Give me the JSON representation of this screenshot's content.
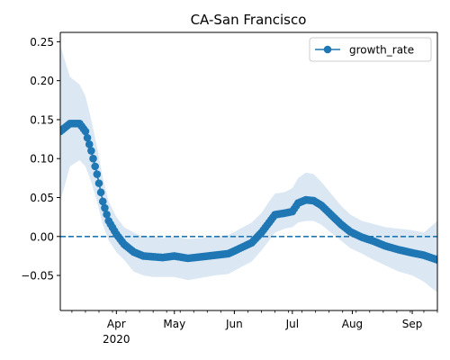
{
  "chart_data": {
    "type": "line",
    "title": "CA-San Francisco",
    "xlabel": "",
    "ylabel": "",
    "x_range": [
      "2020-03-03",
      "2020-09-14"
    ],
    "ylim": [
      -0.095,
      0.262
    ],
    "yticks": [
      "0.25",
      "0.20",
      "0.15",
      "0.10",
      "0.05",
      "0.00",
      "−0.05"
    ],
    "ytick_values": [
      0.25,
      0.2,
      0.15,
      0.1,
      0.05,
      0.0,
      -0.05
    ],
    "xticks": [
      {
        "date": "2020-04-01",
        "label": "Apr",
        "sublabel": "2020"
      },
      {
        "date": "2020-05-01",
        "label": "May",
        "sublabel": ""
      },
      {
        "date": "2020-06-01",
        "label": "Jun",
        "sublabel": ""
      },
      {
        "date": "2020-07-01",
        "label": "Jul",
        "sublabel": ""
      },
      {
        "date": "2020-08-01",
        "label": "Aug",
        "sublabel": ""
      },
      {
        "date": "2020-09-01",
        "label": "Sep",
        "sublabel": ""
      }
    ],
    "legend": {
      "position": "top-right",
      "entries": [
        "growth_rate"
      ]
    },
    "grid": false,
    "reference_line": {
      "y": 0.0,
      "style": "dashed"
    },
    "colors": {
      "series": "#1f77b4",
      "band": "#dbe7f3"
    },
    "series": [
      {
        "name": "growth_rate",
        "marker": "circle",
        "points": [
          {
            "x": "2020-03-03",
            "y": 0.135
          },
          {
            "x": "2020-03-08",
            "y": 0.145
          },
          {
            "x": "2020-03-13",
            "y": 0.145
          },
          {
            "x": "2020-03-16",
            "y": 0.135
          },
          {
            "x": "2020-03-19",
            "y": 0.11
          },
          {
            "x": "2020-03-22",
            "y": 0.08
          },
          {
            "x": "2020-03-25",
            "y": 0.045
          },
          {
            "x": "2020-03-28",
            "y": 0.02
          },
          {
            "x": "2020-04-01",
            "y": 0.003
          },
          {
            "x": "2020-04-05",
            "y": -0.01
          },
          {
            "x": "2020-04-10",
            "y": -0.02
          },
          {
            "x": "2020-04-15",
            "y": -0.025
          },
          {
            "x": "2020-04-20",
            "y": -0.026
          },
          {
            "x": "2020-04-25",
            "y": -0.027
          },
          {
            "x": "2020-05-01",
            "y": -0.025
          },
          {
            "x": "2020-05-08",
            "y": -0.028
          },
          {
            "x": "2020-05-15",
            "y": -0.026
          },
          {
            "x": "2020-05-22",
            "y": -0.024
          },
          {
            "x": "2020-05-29",
            "y": -0.022
          },
          {
            "x": "2020-06-04",
            "y": -0.015
          },
          {
            "x": "2020-06-10",
            "y": -0.008
          },
          {
            "x": "2020-06-15",
            "y": 0.005
          },
          {
            "x": "2020-06-19",
            "y": 0.018
          },
          {
            "x": "2020-06-22",
            "y": 0.028
          },
          {
            "x": "2020-06-27",
            "y": 0.03
          },
          {
            "x": "2020-07-01",
            "y": 0.032
          },
          {
            "x": "2020-07-04",
            "y": 0.043
          },
          {
            "x": "2020-07-08",
            "y": 0.047
          },
          {
            "x": "2020-07-12",
            "y": 0.046
          },
          {
            "x": "2020-07-16",
            "y": 0.04
          },
          {
            "x": "2020-07-21",
            "y": 0.028
          },
          {
            "x": "2020-07-26",
            "y": 0.016
          },
          {
            "x": "2020-07-31",
            "y": 0.006
          },
          {
            "x": "2020-08-06",
            "y": -0.001
          },
          {
            "x": "2020-08-12",
            "y": -0.006
          },
          {
            "x": "2020-08-18",
            "y": -0.012
          },
          {
            "x": "2020-08-25",
            "y": -0.017
          },
          {
            "x": "2020-09-01",
            "y": -0.021
          },
          {
            "x": "2020-09-07",
            "y": -0.024
          },
          {
            "x": "2020-09-14",
            "y": -0.03
          }
        ],
        "band": [
          {
            "x": "2020-03-03",
            "lo": 0.045,
            "hi": 0.245
          },
          {
            "x": "2020-03-08",
            "lo": 0.09,
            "hi": 0.205
          },
          {
            "x": "2020-03-13",
            "lo": 0.098,
            "hi": 0.195
          },
          {
            "x": "2020-03-16",
            "lo": 0.09,
            "hi": 0.18
          },
          {
            "x": "2020-03-19",
            "lo": 0.07,
            "hi": 0.15
          },
          {
            "x": "2020-03-22",
            "lo": 0.045,
            "hi": 0.115
          },
          {
            "x": "2020-03-25",
            "lo": 0.015,
            "hi": 0.075
          },
          {
            "x": "2020-03-28",
            "lo": -0.005,
            "hi": 0.045
          },
          {
            "x": "2020-04-01",
            "lo": -0.02,
            "hi": 0.025
          },
          {
            "x": "2020-04-05",
            "lo": -0.03,
            "hi": 0.012
          },
          {
            "x": "2020-04-10",
            "lo": -0.045,
            "hi": 0.005
          },
          {
            "x": "2020-04-15",
            "lo": -0.05,
            "hi": 0.0
          },
          {
            "x": "2020-04-20",
            "lo": -0.052,
            "hi": 0.0
          },
          {
            "x": "2020-04-25",
            "lo": -0.052,
            "hi": -0.002
          },
          {
            "x": "2020-05-01",
            "lo": -0.052,
            "hi": 0.0
          },
          {
            "x": "2020-05-08",
            "lo": -0.056,
            "hi": -0.003
          },
          {
            "x": "2020-05-15",
            "lo": -0.053,
            "hi": -0.002
          },
          {
            "x": "2020-05-22",
            "lo": -0.05,
            "hi": 0.0
          },
          {
            "x": "2020-05-29",
            "lo": -0.048,
            "hi": 0.002
          },
          {
            "x": "2020-06-04",
            "lo": -0.04,
            "hi": 0.01
          },
          {
            "x": "2020-06-10",
            "lo": -0.032,
            "hi": 0.018
          },
          {
            "x": "2020-06-15",
            "lo": -0.018,
            "hi": 0.03
          },
          {
            "x": "2020-06-19",
            "lo": -0.005,
            "hi": 0.045
          },
          {
            "x": "2020-06-22",
            "lo": 0.005,
            "hi": 0.055
          },
          {
            "x": "2020-06-27",
            "lo": 0.01,
            "hi": 0.057
          },
          {
            "x": "2020-07-01",
            "lo": 0.012,
            "hi": 0.062
          },
          {
            "x": "2020-07-04",
            "lo": 0.018,
            "hi": 0.075
          },
          {
            "x": "2020-07-08",
            "lo": 0.02,
            "hi": 0.082
          },
          {
            "x": "2020-07-12",
            "lo": 0.02,
            "hi": 0.08
          },
          {
            "x": "2020-07-16",
            "lo": 0.015,
            "hi": 0.07
          },
          {
            "x": "2020-07-21",
            "lo": 0.005,
            "hi": 0.055
          },
          {
            "x": "2020-07-26",
            "lo": -0.005,
            "hi": 0.04
          },
          {
            "x": "2020-07-31",
            "lo": -0.015,
            "hi": 0.028
          },
          {
            "x": "2020-08-06",
            "lo": -0.022,
            "hi": 0.02
          },
          {
            "x": "2020-08-12",
            "lo": -0.03,
            "hi": 0.016
          },
          {
            "x": "2020-08-18",
            "lo": -0.037,
            "hi": 0.012
          },
          {
            "x": "2020-08-25",
            "lo": -0.045,
            "hi": 0.01
          },
          {
            "x": "2020-09-01",
            "lo": -0.05,
            "hi": 0.008
          },
          {
            "x": "2020-09-07",
            "lo": -0.058,
            "hi": 0.005
          },
          {
            "x": "2020-09-14",
            "lo": -0.072,
            "hi": 0.02
          }
        ]
      }
    ]
  }
}
